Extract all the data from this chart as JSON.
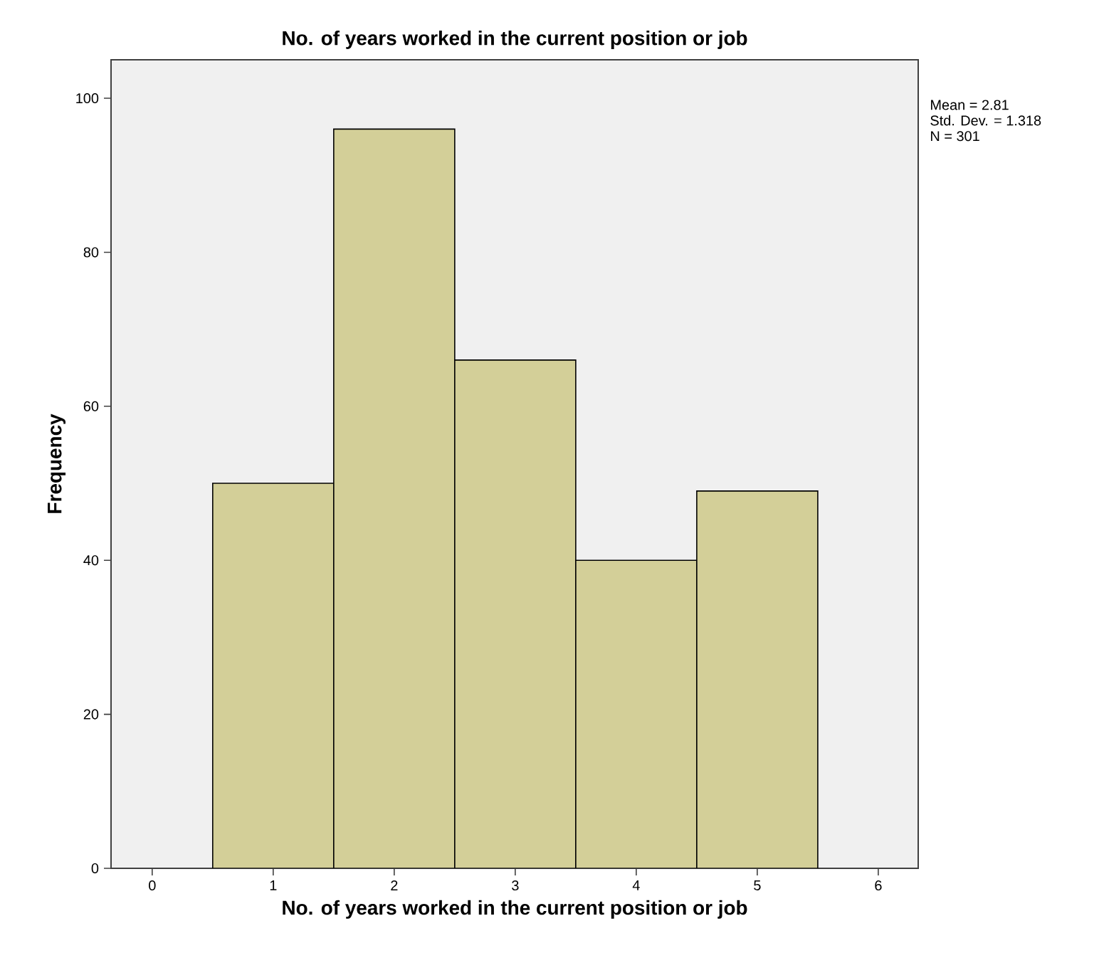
{
  "chart_data": {
    "type": "histogram",
    "title": "No. of years worked in the current position or job",
    "xlabel": "No. of years worked in the current position or job",
    "ylabel": "Frequency",
    "bins": [
      0.5,
      1.5,
      2.5,
      3.5,
      4.5,
      5.5
    ],
    "values": [
      50,
      96,
      66,
      40,
      49
    ],
    "color": "#d3cf98",
    "xlim": [
      -0.34,
      6.33
    ],
    "ylim": [
      0,
      105
    ],
    "xticks": [
      0,
      1,
      2,
      3,
      4,
      5,
      6
    ],
    "yticks": [
      0,
      20,
      40,
      60,
      80,
      100
    ],
    "annotations": [
      "Mean = 2.81",
      "Std. Dev. = 1.318",
      "N = 301"
    ]
  }
}
